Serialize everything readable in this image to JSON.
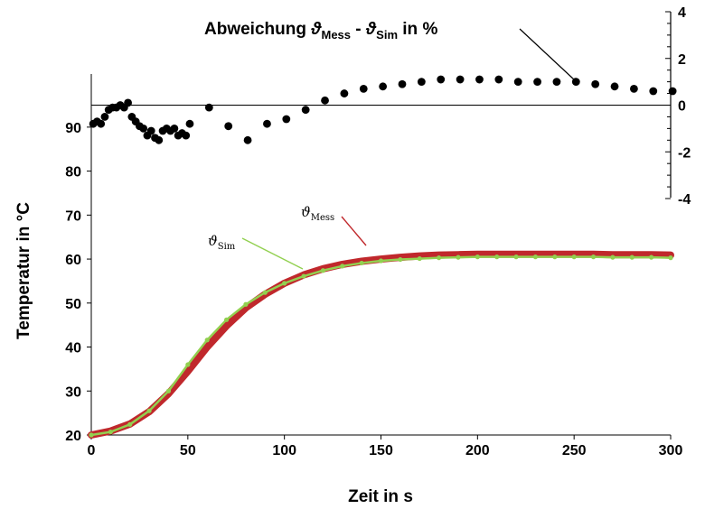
{
  "chart_data": {
    "type": "line",
    "xlabel": "Zeit in s",
    "ylabel": "Temperatur in °C",
    "xlim": [
      0,
      300
    ],
    "ylim": [
      20,
      95
    ],
    "x_ticks": [
      "0",
      "50",
      "100",
      "150",
      "200",
      "250",
      "300"
    ],
    "y_ticks": [
      "20",
      "30",
      "40",
      "50",
      "60",
      "70",
      "80",
      "90"
    ],
    "y2lim": [
      -4,
      4
    ],
    "y2_ticks": [
      "-4",
      "-2",
      "0",
      "2",
      "4"
    ],
    "grid": false,
    "annotation": {
      "text_main": "Abweichung ",
      "theta1": "ϑ",
      "sub1": "Mess",
      "minus": " - ",
      "theta2": "ϑ",
      "sub2": "Sim",
      "suffix": " in %"
    },
    "series": [
      {
        "name": "ϑMess",
        "label_symbol": "ϑ",
        "label_sub": "Mess",
        "axis": "left",
        "color": "#c0282c",
        "x": [
          0,
          10,
          20,
          30,
          40,
          50,
          60,
          70,
          80,
          90,
          100,
          110,
          120,
          130,
          140,
          150,
          160,
          170,
          180,
          190,
          200,
          210,
          220,
          230,
          240,
          250,
          260,
          270,
          280,
          290,
          300
        ],
        "y": [
          20.0,
          20.9,
          22.5,
          25.3,
          29.4,
          34.5,
          40.0,
          44.8,
          48.9,
          52.0,
          54.5,
          56.4,
          57.8,
          58.8,
          59.5,
          60.0,
          60.4,
          60.7,
          60.9,
          61.0,
          61.1,
          61.1,
          61.1,
          61.1,
          61.1,
          61.1,
          61.1,
          61.0,
          61.0,
          61.0,
          60.9
        ]
      },
      {
        "name": "ϑSim",
        "label_symbol": "ϑ",
        "label_sub": "Sim",
        "axis": "left",
        "color": "#92d050",
        "x": [
          0,
          10,
          20,
          30,
          40,
          50,
          60,
          70,
          80,
          90,
          100,
          110,
          120,
          130,
          140,
          150,
          160,
          170,
          180,
          190,
          200,
          210,
          220,
          230,
          240,
          250,
          260,
          270,
          280,
          290,
          300
        ],
        "y": [
          20.0,
          20.7,
          22.4,
          25.5,
          30.0,
          36.0,
          41.6,
          46.2,
          49.7,
          52.4,
          54.5,
          56.1,
          57.4,
          58.4,
          59.1,
          59.6,
          59.9,
          60.1,
          60.3,
          60.4,
          60.5,
          60.5,
          60.5,
          60.5,
          60.5,
          60.5,
          60.5,
          60.4,
          60.4,
          60.4,
          60.3
        ]
      },
      {
        "name": "Abweichung",
        "axis": "right",
        "color": "#000000",
        "x": [
          1,
          3,
          5,
          7,
          9,
          11,
          13,
          15,
          17,
          19,
          21,
          23,
          25,
          27,
          29,
          31,
          33,
          35,
          37,
          39,
          41,
          43,
          45,
          47,
          49,
          51,
          61,
          71,
          81,
          91,
          101,
          111,
          121,
          131,
          141,
          151,
          161,
          171,
          181,
          191,
          201,
          211,
          221,
          231,
          241,
          251,
          261,
          271,
          281,
          291,
          301
        ],
        "y": [
          -0.8,
          -0.7,
          -0.8,
          -0.5,
          -0.2,
          -0.1,
          -0.1,
          0.0,
          -0.1,
          0.1,
          -0.5,
          -0.7,
          -0.9,
          -1.0,
          -1.3,
          -1.1,
          -1.4,
          -1.5,
          -1.1,
          -1.0,
          -1.1,
          -1.0,
          -1.3,
          -1.2,
          -1.3,
          -0.8,
          -0.1,
          -0.9,
          -1.5,
          -0.8,
          -0.6,
          -0.2,
          0.2,
          0.5,
          0.7,
          0.8,
          0.9,
          1.0,
          1.1,
          1.1,
          1.1,
          1.1,
          1.0,
          1.0,
          1.0,
          1.0,
          0.9,
          0.8,
          0.7,
          0.6,
          0.6
        ]
      }
    ]
  }
}
